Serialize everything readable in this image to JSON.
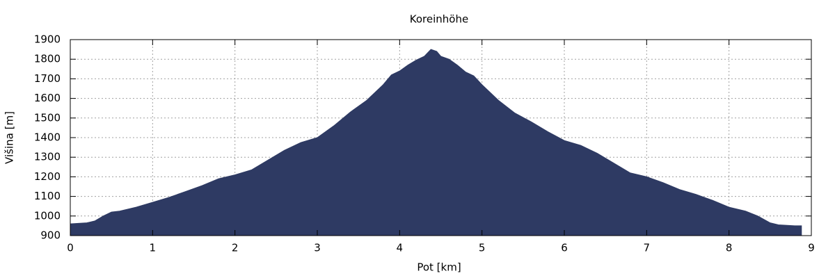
{
  "chart_data": {
    "type": "area",
    "title": "Koreinhöhe",
    "x_label": "Pot [km]",
    "y_label": "Višina [m]",
    "x": [
      0,
      0.2,
      0.3,
      0.4,
      0.5,
      0.6,
      0.8,
      1.0,
      1.2,
      1.4,
      1.6,
      1.8,
      2.0,
      2.2,
      2.4,
      2.6,
      2.8,
      3.0,
      3.2,
      3.4,
      3.6,
      3.8,
      3.9,
      4.0,
      4.1,
      4.2,
      4.3,
      4.38,
      4.45,
      4.5,
      4.6,
      4.7,
      4.8,
      4.9,
      5.0,
      5.2,
      5.4,
      5.6,
      5.8,
      6.0,
      6.2,
      6.4,
      6.6,
      6.8,
      7.0,
      7.2,
      7.4,
      7.6,
      7.8,
      8.0,
      8.2,
      8.35,
      8.5,
      8.6,
      8.8,
      8.88
    ],
    "values": [
      960,
      965,
      975,
      1000,
      1020,
      1025,
      1045,
      1070,
      1095,
      1125,
      1155,
      1190,
      1210,
      1235,
      1285,
      1335,
      1375,
      1400,
      1460,
      1530,
      1590,
      1670,
      1720,
      1740,
      1770,
      1795,
      1815,
      1850,
      1840,
      1815,
      1800,
      1770,
      1735,
      1715,
      1670,
      1590,
      1525,
      1480,
      1430,
      1385,
      1360,
      1320,
      1270,
      1220,
      1200,
      1170,
      1135,
      1110,
      1080,
      1045,
      1025,
      1000,
      965,
      955,
      950,
      950
    ],
    "color": "#2e3a63",
    "xlim": [
      0,
      9
    ],
    "xticks": [
      0,
      1,
      2,
      3,
      4,
      5,
      6,
      7,
      8,
      9
    ],
    "ylim": [
      900,
      1900
    ],
    "yticks": [
      900,
      1000,
      1100,
      1200,
      1300,
      1400,
      1500,
      1600,
      1700,
      1800,
      1900
    ],
    "grid": true
  }
}
